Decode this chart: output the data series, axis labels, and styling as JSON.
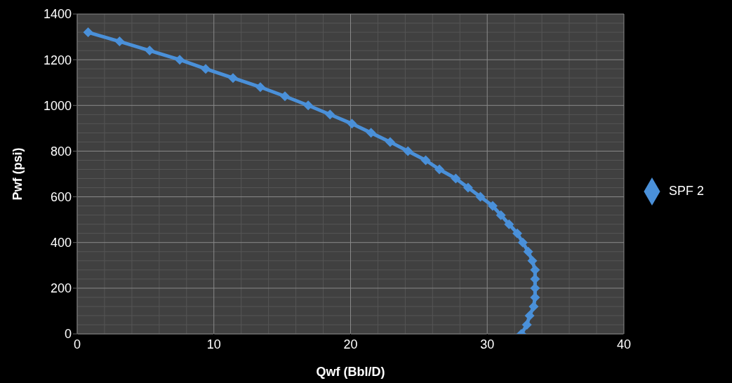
{
  "chart_data": {
    "type": "line",
    "xlabel": "Qwf (Bbl/D)",
    "ylabel": "Pwf (psi)",
    "xlim": [
      0,
      40
    ],
    "xticks": [
      0,
      10,
      20,
      30,
      40
    ],
    "ylim": [
      0,
      1400
    ],
    "yticks": [
      0,
      200,
      400,
      600,
      800,
      1000,
      1200,
      1400
    ],
    "grid": true,
    "legend": "right",
    "marker": "diamond",
    "line_style": "solid",
    "series": [
      {
        "name": "SPF 2",
        "color": "#4a90d9",
        "x": [
          0.8,
          3.1,
          5.3,
          7.5,
          9.4,
          11.4,
          13.4,
          15.2,
          16.9,
          18.5,
          20.1,
          21.5,
          22.9,
          24.2,
          25.5,
          26.5,
          27.7,
          28.6,
          29.5,
          30.4,
          31.0,
          31.6,
          32.2,
          32.6,
          33.0,
          33.3,
          33.5,
          33.5,
          33.5,
          33.5,
          33.4,
          33.1,
          32.9,
          32.5
        ],
        "values": [
          1320,
          1280,
          1240,
          1200,
          1160,
          1120,
          1080,
          1040,
          1000,
          960,
          920,
          880,
          840,
          800,
          760,
          720,
          680,
          640,
          600,
          560,
          520,
          480,
          440,
          400,
          360,
          320,
          280,
          240,
          200,
          160,
          120,
          80,
          40,
          0
        ]
      }
    ]
  }
}
